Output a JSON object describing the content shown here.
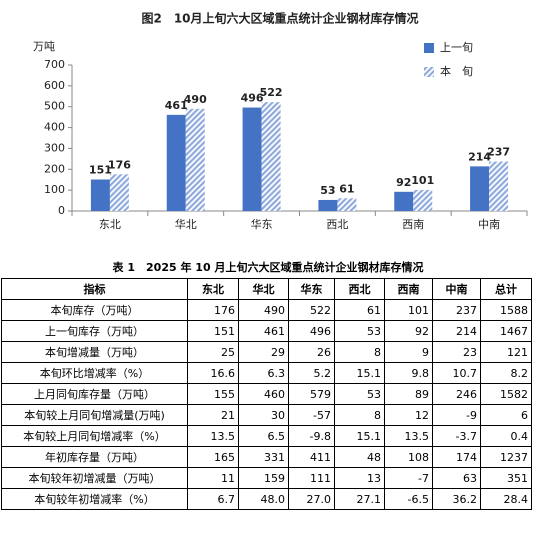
{
  "chart_data": {
    "type": "bar",
    "title": "图2　10月上旬六大区域重点统计企业钢材库存情况",
    "y_label": "万吨",
    "categories": [
      "东北",
      "华北",
      "华东",
      "西北",
      "西南",
      "中南"
    ],
    "series": [
      {
        "name": "上一旬",
        "color": "#4472c4",
        "pattern": "solid",
        "values": [
          151,
          461,
          496,
          53,
          92,
          214
        ]
      },
      {
        "name": "本　旬",
        "color": "#8faadc",
        "pattern": "hatch",
        "values": [
          176,
          490,
          522,
          61,
          101,
          237
        ]
      }
    ],
    "ylim": [
      0,
      700
    ],
    "yticks": [
      0,
      100,
      200,
      300,
      400,
      500,
      600,
      700
    ],
    "grid": false,
    "legend": "top-right"
  },
  "table": {
    "title": "表 1　2025 年 10 月上旬六大区域重点统计企业钢材库存情况",
    "header": [
      "指标",
      "东北",
      "华北",
      "华东",
      "西北",
      "西南",
      "中南",
      "总计"
    ],
    "rows": [
      [
        "本旬库存（万吨）",
        "176",
        "490",
        "522",
        "61",
        "101",
        "237",
        "1588"
      ],
      [
        "上一旬库存（万吨）",
        "151",
        "461",
        "496",
        "53",
        "92",
        "214",
        "1467"
      ],
      [
        "本旬增减量（万吨）",
        "25",
        "29",
        "26",
        "8",
        "9",
        "23",
        "121"
      ],
      [
        "本旬环比增减率（%）",
        "16.6",
        "6.3",
        "5.2",
        "15.1",
        "9.8",
        "10.7",
        "8.2"
      ],
      [
        "上月同旬库存量（万吨）",
        "155",
        "460",
        "579",
        "53",
        "89",
        "246",
        "1582"
      ],
      [
        "本旬较上月同旬增减量(万吨)",
        "21",
        "30",
        "-57",
        "8",
        "12",
        "-9",
        "6"
      ],
      [
        "本旬较上月同旬增减率（%）",
        "13.5",
        "6.5",
        "-9.8",
        "15.1",
        "13.5",
        "-3.7",
        "0.4"
      ],
      [
        "年初库存量（万吨）",
        "165",
        "331",
        "411",
        "48",
        "108",
        "174",
        "1237"
      ],
      [
        "本旬较年初增减量（万吨）",
        "11",
        "159",
        "111",
        "13",
        "-7",
        "63",
        "351"
      ],
      [
        "本旬较年初增减率（%）",
        "6.7",
        "48.0",
        "27.0",
        "27.1",
        "-6.5",
        "36.2",
        "28.4"
      ]
    ]
  }
}
